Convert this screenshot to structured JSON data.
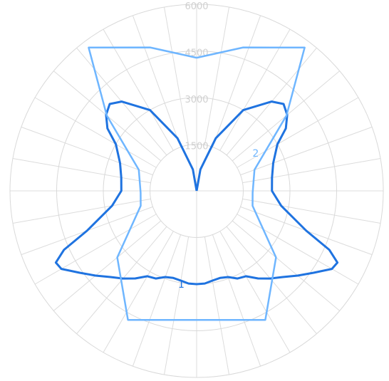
{
  "chart_data": {
    "type": "polar-line",
    "title": "",
    "r_max": 6000,
    "radial_ticks": [
      1500,
      3000,
      4500,
      6000
    ],
    "angle_step_deg": 10,
    "angle_convention": "0 deg = straight down (nadir), positive = clockwise toward left, 180 = straight up",
    "grid": true,
    "series": [
      {
        "id": "1",
        "label": "1",
        "color": "#1f73e0",
        "points": [
          {
            "a": 0,
            "r": 3000
          },
          {
            "a": 5,
            "r": 2990
          },
          {
            "a": 10,
            "r": 2930
          },
          {
            "a": 15,
            "r": 2900
          },
          {
            "a": 20,
            "r": 2950
          },
          {
            "a": 25,
            "r": 3110
          },
          {
            "a": 30,
            "r": 3170
          },
          {
            "a": 35,
            "r": 3440
          },
          {
            "a": 40,
            "r": 3680
          },
          {
            "a": 45,
            "r": 3920
          },
          {
            "a": 50,
            "r": 4240
          },
          {
            "a": 55,
            "r": 4590
          },
          {
            "a": 60,
            "r": 5020
          },
          {
            "a": 63,
            "r": 5080
          },
          {
            "a": 66,
            "r": 4670
          },
          {
            "a": 70,
            "r": 3750
          },
          {
            "a": 80,
            "r": 2760
          },
          {
            "a": 90,
            "r": 2420
          },
          {
            "a": 100,
            "r": 2460
          },
          {
            "a": 110,
            "r": 2620
          },
          {
            "a": 120,
            "r": 3000
          },
          {
            "a": 125,
            "r": 3500
          },
          {
            "a": 130,
            "r": 3800
          },
          {
            "a": 135,
            "r": 3950
          },
          {
            "a": 140,
            "r": 3750
          },
          {
            "a": 150,
            "r": 3000
          },
          {
            "a": 160,
            "r": 1800
          },
          {
            "a": 170,
            "r": 700
          },
          {
            "a": 180,
            "r": 0
          }
        ],
        "mirror": true,
        "label_at": {
          "a": 9,
          "r": 3150
        }
      },
      {
        "id": "2",
        "label": "2",
        "color": "#6fb6ff",
        "points": [
          {
            "a": 0,
            "r": 4150
          },
          {
            "a": 28,
            "r": 4700
          },
          {
            "a": 50,
            "r": 3330
          },
          {
            "a": 75,
            "r": 1860
          },
          {
            "a": 88,
            "r": 1800
          },
          {
            "a": 110,
            "r": 1980
          },
          {
            "a": 130,
            "r": 3770
          },
          {
            "a": 143,
            "r": 5770
          },
          {
            "a": 162,
            "r": 4850
          },
          {
            "a": 180,
            "r": 4280
          }
        ],
        "mirror": true,
        "label_at": {
          "a": -120,
          "r": 2190
        }
      }
    ]
  }
}
